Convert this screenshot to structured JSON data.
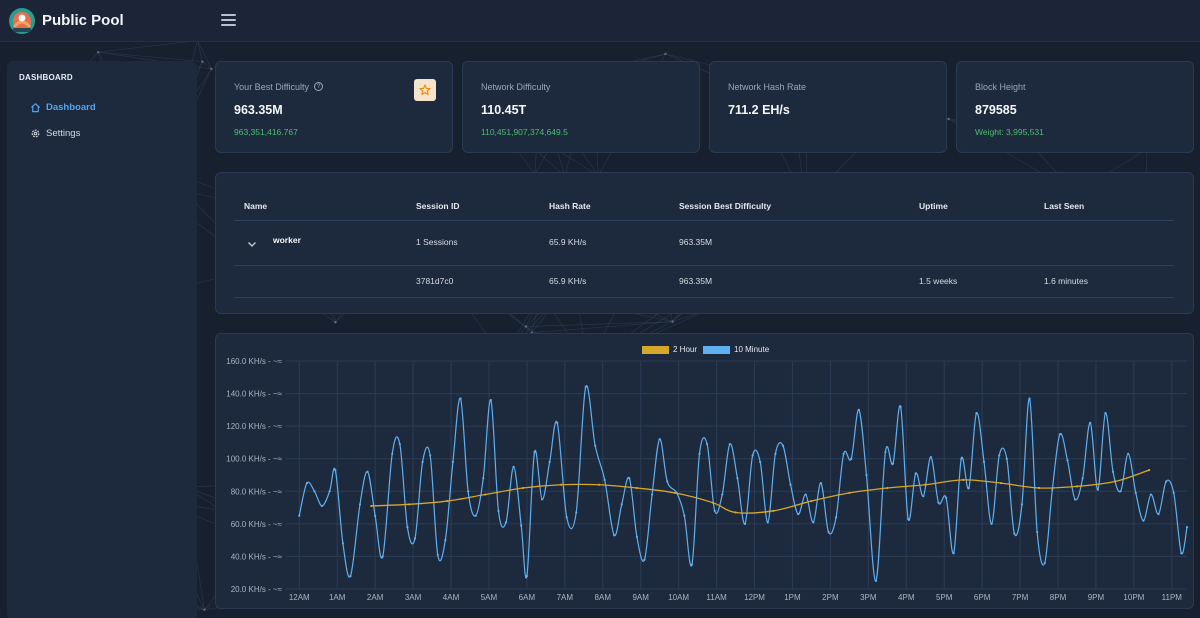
{
  "app": {
    "title": "Public Pool"
  },
  "sidebar": {
    "header": "DASHBOARD",
    "items": [
      {
        "label": "Dashboard",
        "icon": "home-icon",
        "active": true
      },
      {
        "label": "Settings",
        "icon": "gear-icon",
        "active": false
      }
    ]
  },
  "stats": {
    "best": {
      "label": "Your Best Difficulty",
      "value": "963.35M",
      "sub": "963,351,416.767"
    },
    "network_difficulty": {
      "label": "Network Difficulty",
      "value": "110.45T",
      "sub": "110,451,907,374,649.5"
    },
    "network_hashrate": {
      "label": "Network Hash Rate",
      "value": "711.2 EH/s"
    },
    "block_height": {
      "label": "Block Height",
      "value": "879585",
      "sub": "Weight: 3,995,531"
    }
  },
  "workers_table": {
    "headers": [
      "Name",
      "Session ID",
      "Hash Rate",
      "Session Best Difficulty",
      "Uptime",
      "Last Seen"
    ],
    "worker": {
      "name": "worker",
      "sessions": "1 Sessions",
      "hashrate": "65.9 KH/s",
      "best": "963.35M"
    },
    "session": {
      "id": "3781d7c0",
      "hashrate": "65.9 KH/s",
      "best": "963.35M",
      "uptime": "1.5 weeks",
      "last_seen": "1.6 minutes"
    }
  },
  "colors": {
    "accent": "#4ea5f0",
    "green": "#4cbf70",
    "series_2h": "#d4a82a",
    "series_10m": "#5fb0f0"
  },
  "chart_data": {
    "type": "line",
    "ylim": [
      20,
      160
    ],
    "y_ticks": [
      20,
      40,
      60,
      80,
      100,
      120,
      140,
      160
    ],
    "y_tick_labels": [
      "20.0 KH/s - ~≈",
      "40.0 KH/s - ~≈",
      "60.0 KH/s - ~≈",
      "80.0 KH/s - ~≈",
      "100.0 KH/s - ~≈",
      "120.0 KH/s - ~≈",
      "140.0 KH/s - ~≈",
      "160.0 KH/s - ~≈"
    ],
    "x_tick_labels": [
      "12AM",
      "1AM",
      "2AM",
      "3AM",
      "4AM",
      "5AM",
      "6AM",
      "7AM",
      "8AM",
      "9AM",
      "10AM",
      "11AM",
      "12PM",
      "1PM",
      "2PM",
      "3PM",
      "4PM",
      "5PM",
      "6PM",
      "7PM",
      "8PM",
      "9PM",
      "10PM",
      "11PM"
    ],
    "x_range_hours": [
      -0.35,
      23.4
    ],
    "series": [
      {
        "name": "2 Hour",
        "color": "#d4a82a",
        "points": [
          [
            1.9,
            71
          ],
          [
            2.9,
            72
          ],
          [
            3.9,
            74
          ],
          [
            4.9,
            78
          ],
          [
            5.9,
            82
          ],
          [
            6.9,
            84
          ],
          [
            7.9,
            84
          ],
          [
            8.9,
            82
          ],
          [
            9.9,
            79
          ],
          [
            10.9,
            73
          ],
          [
            11.5,
            67
          ],
          [
            12.5,
            68
          ],
          [
            13.5,
            74
          ],
          [
            14.5,
            79
          ],
          [
            15.5,
            82
          ],
          [
            16.5,
            84
          ],
          [
            17.5,
            87
          ],
          [
            18.5,
            85
          ],
          [
            19.5,
            82
          ],
          [
            20.5,
            83
          ],
          [
            21.5,
            86
          ],
          [
            22.4,
            93
          ]
        ]
      },
      {
        "name": "10 Minute",
        "color": "#5fb0f0",
        "points": [
          [
            0,
            65
          ],
          [
            0.2,
            85
          ],
          [
            0.4,
            80
          ],
          [
            0.6,
            71
          ],
          [
            0.8,
            80
          ],
          [
            0.95,
            93
          ],
          [
            1.15,
            48
          ],
          [
            1.35,
            28
          ],
          [
            1.6,
            72
          ],
          [
            1.8,
            92
          ],
          [
            2.0,
            65
          ],
          [
            2.2,
            40
          ],
          [
            2.45,
            103
          ],
          [
            2.65,
            109
          ],
          [
            2.85,
            58
          ],
          [
            3.05,
            51
          ],
          [
            3.25,
            98
          ],
          [
            3.45,
            102
          ],
          [
            3.65,
            41
          ],
          [
            3.85,
            50
          ],
          [
            4.05,
            98
          ],
          [
            4.25,
            137
          ],
          [
            4.45,
            80
          ],
          [
            4.65,
            65
          ],
          [
            4.85,
            88
          ],
          [
            5.05,
            136
          ],
          [
            5.25,
            68
          ],
          [
            5.45,
            61
          ],
          [
            5.65,
            95
          ],
          [
            5.85,
            59
          ],
          [
            6.0,
            28
          ],
          [
            6.2,
            104
          ],
          [
            6.4,
            75
          ],
          [
            6.6,
            98
          ],
          [
            6.8,
            122
          ],
          [
            7.05,
            64
          ],
          [
            7.3,
            67
          ],
          [
            7.55,
            144
          ],
          [
            7.8,
            108
          ],
          [
            8.05,
            87
          ],
          [
            8.3,
            53
          ],
          [
            8.5,
            72
          ],
          [
            8.7,
            88
          ],
          [
            8.9,
            52
          ],
          [
            9.1,
            38
          ],
          [
            9.3,
            78
          ],
          [
            9.5,
            112
          ],
          [
            9.7,
            86
          ],
          [
            9.95,
            79
          ],
          [
            10.15,
            65
          ],
          [
            10.35,
            35
          ],
          [
            10.55,
            103
          ],
          [
            10.75,
            109
          ],
          [
            10.95,
            68
          ],
          [
            11.15,
            78
          ],
          [
            11.35,
            109
          ],
          [
            11.55,
            88
          ],
          [
            11.75,
            60
          ],
          [
            11.95,
            102
          ],
          [
            12.15,
            98
          ],
          [
            12.35,
            61
          ],
          [
            12.55,
            103
          ],
          [
            12.75,
            108
          ],
          [
            12.95,
            84
          ],
          [
            13.15,
            66
          ],
          [
            13.35,
            78
          ],
          [
            13.55,
            61
          ],
          [
            13.75,
            85
          ],
          [
            13.95,
            55
          ],
          [
            14.15,
            64
          ],
          [
            14.35,
            103
          ],
          [
            14.55,
            100
          ],
          [
            14.75,
            130
          ],
          [
            14.95,
            90
          ],
          [
            15.2,
            25
          ],
          [
            15.45,
            104
          ],
          [
            15.65,
            97
          ],
          [
            15.85,
            132
          ],
          [
            16.05,
            63
          ],
          [
            16.25,
            91
          ],
          [
            16.45,
            77
          ],
          [
            16.65,
            101
          ],
          [
            16.85,
            73
          ],
          [
            17.05,
            76
          ],
          [
            17.25,
            42
          ],
          [
            17.45,
            100
          ],
          [
            17.65,
            82
          ],
          [
            17.85,
            128
          ],
          [
            18.05,
            98
          ],
          [
            18.25,
            60
          ],
          [
            18.45,
            102
          ],
          [
            18.65,
            100
          ],
          [
            18.85,
            54
          ],
          [
            19.05,
            72
          ],
          [
            19.25,
            137
          ],
          [
            19.45,
            55
          ],
          [
            19.65,
            36
          ],
          [
            19.85,
            81
          ],
          [
            20.05,
            115
          ],
          [
            20.25,
            99
          ],
          [
            20.45,
            75
          ],
          [
            20.65,
            88
          ],
          [
            20.85,
            122
          ],
          [
            21.05,
            81
          ],
          [
            21.25,
            128
          ],
          [
            21.45,
            92
          ],
          [
            21.65,
            80
          ],
          [
            21.85,
            103
          ],
          [
            22.05,
            79
          ],
          [
            22.25,
            62
          ],
          [
            22.45,
            78
          ],
          [
            22.65,
            66
          ],
          [
            22.85,
            86
          ],
          [
            23.05,
            79
          ],
          [
            23.25,
            42
          ],
          [
            23.4,
            58
          ]
        ]
      }
    ]
  }
}
